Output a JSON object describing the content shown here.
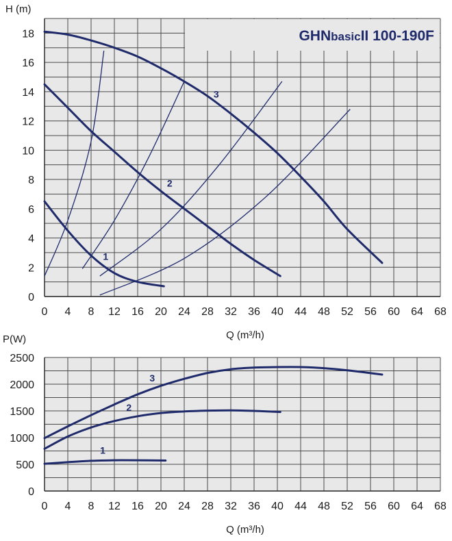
{
  "colors": {
    "curve": "#1f2a6b",
    "grid": "#4a4a4a",
    "plot_bg": "#e8e8e8",
    "title": "#1f2a6b"
  },
  "chart_data": [
    {
      "type": "line",
      "title_main": "GHN",
      "title_sub": "basic",
      "title_end": "II  100-190F",
      "xlabel": "Q (m³/h)",
      "ylabel": "H (m)",
      "xlim": [
        0,
        68
      ],
      "ylim": [
        0,
        19
      ],
      "x_ticks": [
        "0",
        "4",
        "8",
        "12",
        "16",
        "20",
        "24",
        "28",
        "32",
        "36",
        "40",
        "44",
        "48",
        "52",
        "56",
        "60",
        "64",
        "68"
      ],
      "y_ticks": [
        "0",
        "2",
        "4",
        "6",
        "8",
        "10",
        "12",
        "14",
        "16",
        "18"
      ],
      "grid": true,
      "series": [
        {
          "name": "1",
          "x": [
            0,
            4,
            8,
            12,
            16,
            20.5
          ],
          "y": [
            6.5,
            4.5,
            2.8,
            1.6,
            1.0,
            0.7
          ]
        },
        {
          "name": "2",
          "x": [
            0,
            4,
            8,
            12,
            16,
            20,
            24,
            28,
            32,
            36,
            40.5
          ],
          "y": [
            14.5,
            12.9,
            11.3,
            9.9,
            8.5,
            7.2,
            6.0,
            4.8,
            3.6,
            2.5,
            1.4
          ]
        },
        {
          "name": "3",
          "x": [
            0,
            4,
            8,
            12,
            16,
            20,
            24,
            28,
            32,
            36,
            40,
            44,
            48,
            52,
            58
          ],
          "y": [
            18.1,
            17.9,
            17.5,
            17.0,
            16.4,
            15.6,
            14.7,
            13.7,
            12.5,
            11.2,
            9.8,
            8.2,
            6.5,
            4.6,
            2.3
          ]
        }
      ],
      "system_curves": [
        {
          "x": [
            0,
            4,
            8,
            10.2
          ],
          "y": [
            1.4,
            5.2,
            10.6,
            16.8
          ]
        },
        {
          "x": [
            6.5,
            12,
            18,
            24
          ],
          "y": [
            1.9,
            5.2,
            9.6,
            14.7
          ]
        },
        {
          "x": [
            9.5,
            20,
            30,
            40.8
          ],
          "y": [
            1.4,
            4.6,
            9.0,
            14.7
          ]
        },
        {
          "x": [
            9.5,
            24,
            38,
            52.5
          ],
          "y": [
            0.1,
            2.6,
            6.8,
            12.8
          ]
        }
      ],
      "curve_labels": [
        {
          "text": "1",
          "x": 10.5,
          "y": 2.5
        },
        {
          "text": "2",
          "x": 21.5,
          "y": 7.5
        },
        {
          "text": "3",
          "x": 29.5,
          "y": 13.6
        }
      ]
    },
    {
      "type": "line",
      "xlabel": "Q (m³/h)",
      "ylabel": "P(W)",
      "xlim": [
        0,
        68
      ],
      "ylim": [
        0,
        2500
      ],
      "x_ticks": [
        "0",
        "4",
        "8",
        "12",
        "16",
        "20",
        "24",
        "28",
        "32",
        "36",
        "40",
        "44",
        "48",
        "52",
        "56",
        "60",
        "64",
        "68"
      ],
      "y_ticks": [
        "0",
        "500",
        "1000",
        "1500",
        "2000",
        "2500"
      ],
      "grid": true,
      "series": [
        {
          "name": "1",
          "x": [
            0,
            4,
            8,
            12,
            16,
            20.8
          ],
          "y": [
            510,
            540,
            565,
            575,
            575,
            570
          ]
        },
        {
          "name": "2",
          "x": [
            0,
            4,
            8,
            12,
            16,
            20,
            24,
            28,
            32,
            36,
            40.5
          ],
          "y": [
            790,
            1020,
            1190,
            1310,
            1400,
            1460,
            1490,
            1505,
            1510,
            1500,
            1480
          ]
        },
        {
          "name": "3",
          "x": [
            0,
            4,
            8,
            12,
            16,
            20,
            24,
            28,
            32,
            36,
            40,
            44,
            48,
            52,
            58
          ],
          "y": [
            990,
            1210,
            1420,
            1620,
            1810,
            1970,
            2100,
            2210,
            2280,
            2310,
            2320,
            2320,
            2300,
            2260,
            2180
          ]
        }
      ],
      "curve_labels": [
        {
          "text": "1",
          "x": 10,
          "y": 700
        },
        {
          "text": "2",
          "x": 14.5,
          "y": 1500
        },
        {
          "text": "3",
          "x": 18.5,
          "y": 2050
        }
      ]
    }
  ]
}
